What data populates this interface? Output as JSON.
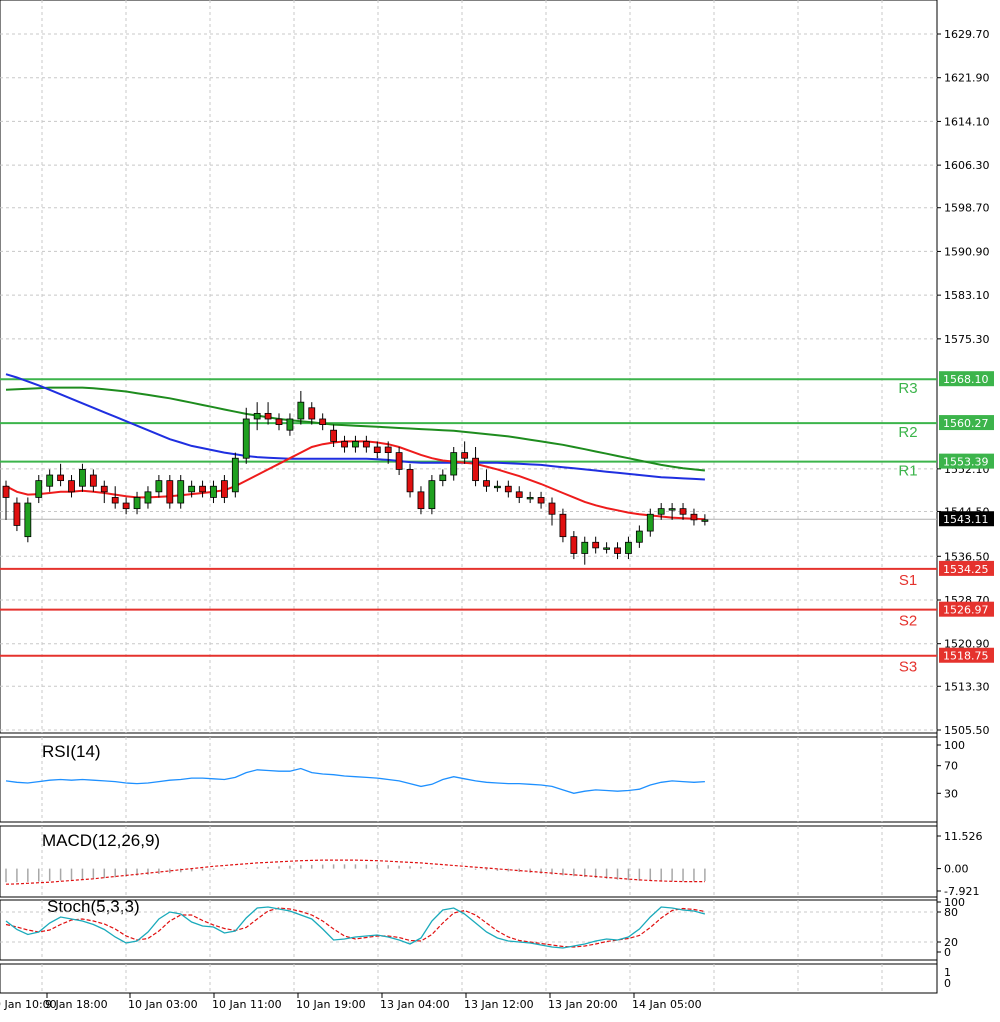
{
  "chart_data": {
    "type": "candlestick",
    "price_axis": {
      "ticks": [
        "1629.70",
        "1621.90",
        "1614.10",
        "1606.30",
        "1598.70",
        "1590.90",
        "1583.10",
        "1575.30",
        "1552.10",
        "1544.50",
        "1536.50",
        "1528.70",
        "1520.90",
        "1513.30",
        "1505.50"
      ],
      "current_price": "1543.11"
    },
    "time_axis": {
      "labels": [
        "9 Jan 10:00",
        "9 Jan 18:00",
        "10 Jan 03:00",
        "10 Jan 11:00",
        "10 Jan 19:00",
        "13 Jan 04:00",
        "13 Jan 12:00",
        "13 Jan 20:00",
        "14 Jan 05:00"
      ]
    },
    "levels": [
      {
        "name": "R3",
        "value": "1568.10",
        "color": "#3cb44b"
      },
      {
        "name": "R2",
        "value": "1560.27",
        "color": "#3cb44b"
      },
      {
        "name": "R1",
        "value": "1553.39",
        "color": "#3cb44b"
      },
      {
        "name": "S1",
        "value": "1534.25",
        "color": "#e5322d"
      },
      {
        "name": "S2",
        "value": "1526.97",
        "color": "#e5322d"
      },
      {
        "name": "S3",
        "value": "1518.75",
        "color": "#e5322d"
      }
    ],
    "candles": [
      [
        1549,
        1550,
        1543,
        1547
      ],
      [
        1546,
        1547,
        1541,
        1542
      ],
      [
        1540,
        1547,
        1539,
        1546
      ],
      [
        1547,
        1551,
        1546,
        1550
      ],
      [
        1549,
        1552,
        1548,
        1551
      ],
      [
        1551,
        1553,
        1549,
        1550
      ],
      [
        1550,
        1551,
        1547,
        1548
      ],
      [
        1549,
        1553,
        1548,
        1552
      ],
      [
        1551,
        1552,
        1548,
        1549
      ],
      [
        1549,
        1550,
        1546,
        1548
      ],
      [
        1547,
        1549,
        1545,
        1546
      ],
      [
        1546,
        1547,
        1544,
        1545
      ],
      [
        1545,
        1548,
        1544,
        1547
      ],
      [
        1546,
        1549,
        1545,
        1548
      ],
      [
        1548,
        1551,
        1547,
        1550
      ],
      [
        1550,
        1551,
        1545,
        1546
      ],
      [
        1546,
        1551,
        1545,
        1550
      ],
      [
        1548,
        1550,
        1547,
        1549
      ],
      [
        1549,
        1550,
        1547,
        1548
      ],
      [
        1547,
        1550,
        1546,
        1549
      ],
      [
        1550,
        1551,
        1546,
        1547
      ],
      [
        1548,
        1555,
        1547,
        1554
      ],
      [
        1554,
        1563,
        1553,
        1561
      ],
      [
        1561,
        1564,
        1559,
        1562
      ],
      [
        1562,
        1564,
        1560,
        1561
      ],
      [
        1561,
        1562,
        1559,
        1560
      ],
      [
        1559,
        1562,
        1558,
        1561
      ],
      [
        1561,
        1566,
        1560,
        1564
      ],
      [
        1563,
        1564,
        1560,
        1561
      ],
      [
        1561,
        1562,
        1559,
        1560
      ],
      [
        1559,
        1560,
        1556,
        1557
      ],
      [
        1557,
        1558,
        1555,
        1556
      ],
      [
        1556,
        1558,
        1555,
        1557
      ],
      [
        1557,
        1558,
        1555,
        1556
      ],
      [
        1556,
        1557,
        1554,
        1555
      ],
      [
        1556,
        1557,
        1553,
        1555
      ],
      [
        1555,
        1556,
        1551,
        1552
      ],
      [
        1552,
        1553,
        1547,
        1548
      ],
      [
        1548,
        1549,
        1544,
        1545
      ],
      [
        1545,
        1551,
        1544,
        1550
      ],
      [
        1550,
        1552,
        1549,
        1551
      ],
      [
        1551,
        1556,
        1550,
        1555
      ],
      [
        1555,
        1557,
        1553,
        1554
      ],
      [
        1554,
        1556,
        1549,
        1550
      ],
      [
        1550,
        1552,
        1548,
        1549
      ],
      [
        1549,
        1550,
        1548,
        1549
      ],
      [
        1549,
        1550,
        1547,
        1548
      ],
      [
        1548,
        1549,
        1546,
        1547
      ],
      [
        1547,
        1548,
        1546,
        1547
      ],
      [
        1547,
        1548,
        1545,
        1546
      ],
      [
        1546,
        1547,
        1542,
        1544
      ],
      [
        1544,
        1545,
        1539,
        1540
      ],
      [
        1540,
        1541,
        1536,
        1537
      ],
      [
        1537,
        1540,
        1535,
        1539
      ],
      [
        1539,
        1540,
        1537,
        1538
      ],
      [
        1538,
        1539,
        1537,
        1538
      ],
      [
        1538,
        1539,
        1536,
        1537
      ],
      [
        1537,
        1540,
        1536,
        1539
      ],
      [
        1539,
        1542,
        1538,
        1541
      ],
      [
        1541,
        1545,
        1540,
        1544
      ],
      [
        1544,
        1546,
        1543,
        1545
      ],
      [
        1545,
        1546,
        1543,
        1545
      ],
      [
        1545,
        1546,
        1543,
        1544
      ],
      [
        1544,
        1545,
        1542,
        1543
      ],
      [
        1543,
        1544,
        1542,
        1543
      ]
    ],
    "ma_fast": [
      1549,
      1548,
      1547.5,
      1547.6,
      1547.8,
      1548,
      1548,
      1548.2,
      1548,
      1547.8,
      1547.5,
      1547.2,
      1547,
      1547,
      1547.1,
      1547.2,
      1547.4,
      1547.6,
      1547.8,
      1548,
      1548.3,
      1549,
      1550,
      1551,
      1552,
      1553,
      1554,
      1555,
      1556,
      1556.5,
      1556.8,
      1557,
      1557,
      1557,
      1556.8,
      1556.5,
      1556,
      1555.3,
      1554.6,
      1554,
      1553.6,
      1553.4,
      1553.2,
      1553,
      1552.5,
      1552,
      1551.4,
      1550.8,
      1550.1,
      1549.4,
      1548.6,
      1547.8,
      1547,
      1546.2,
      1545.6,
      1545.1,
      1544.7,
      1544.3,
      1544,
      1543.8,
      1543.6,
      1543.4,
      1543.3,
      1543.2,
      1543.1
    ],
    "ma_mid": [
      1569,
      1568.4,
      1567.7,
      1567,
      1566.2,
      1565.4,
      1564.6,
      1563.8,
      1563,
      1562.2,
      1561.4,
      1560.6,
      1559.8,
      1559,
      1558.2,
      1557.4,
      1556.8,
      1556.2,
      1555.8,
      1555.4,
      1555,
      1554.7,
      1554.4,
      1554.2,
      1554.1,
      1554,
      1553.9,
      1553.9,
      1553.9,
      1553.9,
      1553.9,
      1553.9,
      1553.9,
      1553.9,
      1553.8,
      1553.7,
      1553.5,
      1553.3,
      1553.2,
      1553.2,
      1553.2,
      1553.2,
      1553.2,
      1553.2,
      1553.2,
      1553.2,
      1553.1,
      1553,
      1552.9,
      1552.8,
      1552.6,
      1552.4,
      1552.2,
      1552,
      1551.8,
      1551.6,
      1551.4,
      1551.2,
      1551,
      1550.8,
      1550.6,
      1550.5,
      1550.4,
      1550.3,
      1550.2
    ],
    "ma_slow": [
      1566.2,
      1566.3,
      1566.4,
      1566.5,
      1566.6,
      1566.6,
      1566.6,
      1566.6,
      1566.5,
      1566.3,
      1566.1,
      1565.9,
      1565.6,
      1565.3,
      1565,
      1564.7,
      1564.3,
      1563.9,
      1563.5,
      1563.1,
      1562.7,
      1562.3,
      1561.9,
      1561.6,
      1561.3,
      1561,
      1560.8,
      1560.6,
      1560.4,
      1560.2,
      1560,
      1559.9,
      1559.8,
      1559.7,
      1559.6,
      1559.5,
      1559.4,
      1559.3,
      1559.2,
      1559.1,
      1559,
      1558.9,
      1558.7,
      1558.5,
      1558.3,
      1558.1,
      1557.9,
      1557.6,
      1557.3,
      1557,
      1556.7,
      1556.4,
      1556,
      1555.6,
      1555.2,
      1554.8,
      1554.4,
      1554,
      1553.6,
      1553.2,
      1552.8,
      1552.5,
      1552.2,
      1552,
      1551.8
    ],
    "rsi": {
      "label": "RSI(14)",
      "scale": [
        "100",
        "70",
        "30"
      ],
      "values": [
        48,
        46,
        45,
        47,
        49,
        50,
        49,
        50,
        49,
        48,
        47,
        45,
        44,
        45,
        47,
        49,
        50,
        52,
        52,
        51,
        50,
        53,
        60,
        64,
        63,
        62,
        62,
        66,
        60,
        58,
        57,
        55,
        54,
        53,
        52,
        50,
        48,
        44,
        40,
        43,
        50,
        54,
        51,
        48,
        46,
        45,
        44,
        44,
        43,
        42,
        40,
        35,
        30,
        33,
        35,
        34,
        33,
        34,
        36,
        42,
        46,
        48,
        47,
        46,
        47
      ]
    },
    "macd": {
      "label": "MACD(12,26,9)",
      "scale": [
        "11.526",
        "0.00",
        "-7.921"
      ],
      "histogram": [
        -4.8,
        -4.8,
        -4.7,
        -4.6,
        -4.4,
        -4.2,
        -4,
        -3.8,
        -3.6,
        -3.4,
        -3.1,
        -2.8,
        -2.5,
        -2.2,
        -1.9,
        -1.6,
        -1.3,
        -1,
        -0.7,
        -0.4,
        -0.2,
        0,
        0.2,
        0.4,
        0.6,
        0.8,
        1,
        1.2,
        1.3,
        1.4,
        1.5,
        1.5,
        1.5,
        1.4,
        1.3,
        1.2,
        1,
        0.8,
        0.6,
        0.4,
        0.2,
        0,
        -0.2,
        -0.4,
        -0.6,
        -0.8,
        -1,
        -1.2,
        -1.5,
        -1.8,
        -2.1,
        -2.4,
        -2.7,
        -3,
        -3.3,
        -3.6,
        -3.9,
        -4.1,
        -4.3,
        -4.4,
        -4.5,
        -4.5,
        -4.5,
        -4.5,
        -4.4
      ],
      "signal": [
        -5.5,
        -5.4,
        -5.2,
        -5,
        -4.8,
        -4.5,
        -4.2,
        -3.9,
        -3.6,
        -3.2,
        -2.8,
        -2.4,
        -2,
        -1.6,
        -1.2,
        -0.8,
        -0.4,
        0,
        0.4,
        0.8,
        1.1,
        1.4,
        1.7,
        2,
        2.2,
        2.4,
        2.6,
        2.8,
        2.9,
        3,
        3,
        3,
        3,
        2.9,
        2.8,
        2.6,
        2.4,
        2.2,
        2,
        1.7,
        1.4,
        1.1,
        0.8,
        0.5,
        0.2,
        -0.1,
        -0.4,
        -0.7,
        -1,
        -1.3,
        -1.6,
        -1.9,
        -2.2,
        -2.5,
        -2.8,
        -3.1,
        -3.4,
        -3.7,
        -4,
        -4.2,
        -4.4,
        -4.5,
        -4.6,
        -4.6,
        -4.6
      ]
    },
    "stoch": {
      "label": "Stoch(5,3,3)",
      "scale": [
        "100",
        "80",
        "20",
        "0"
      ],
      "main": [
        62,
        45,
        35,
        40,
        58,
        70,
        66,
        62,
        55,
        45,
        30,
        18,
        22,
        40,
        66,
        80,
        76,
        60,
        52,
        50,
        38,
        42,
        68,
        88,
        90,
        86,
        82,
        74,
        66,
        46,
        24,
        26,
        30,
        32,
        34,
        30,
        24,
        16,
        28,
        62,
        84,
        88,
        76,
        58,
        40,
        28,
        22,
        20,
        18,
        14,
        10,
        8,
        12,
        16,
        22,
        26,
        24,
        30,
        46,
        70,
        90,
        88,
        84,
        82,
        76
      ],
      "signal": [
        55,
        50,
        44,
        40,
        44,
        55,
        64,
        66,
        62,
        56,
        46,
        32,
        24,
        27,
        42,
        62,
        74,
        74,
        63,
        54,
        47,
        43,
        49,
        66,
        82,
        88,
        86,
        81,
        74,
        62,
        46,
        32,
        26,
        29,
        32,
        32,
        29,
        23,
        22,
        35,
        58,
        78,
        83,
        74,
        58,
        42,
        30,
        23,
        20,
        17,
        14,
        11,
        10,
        12,
        16,
        21,
        24,
        27,
        33,
        49,
        68,
        83,
        87,
        85,
        81
      ]
    },
    "bottom_pane": {
      "scale": [
        "1",
        "0"
      ]
    }
  }
}
